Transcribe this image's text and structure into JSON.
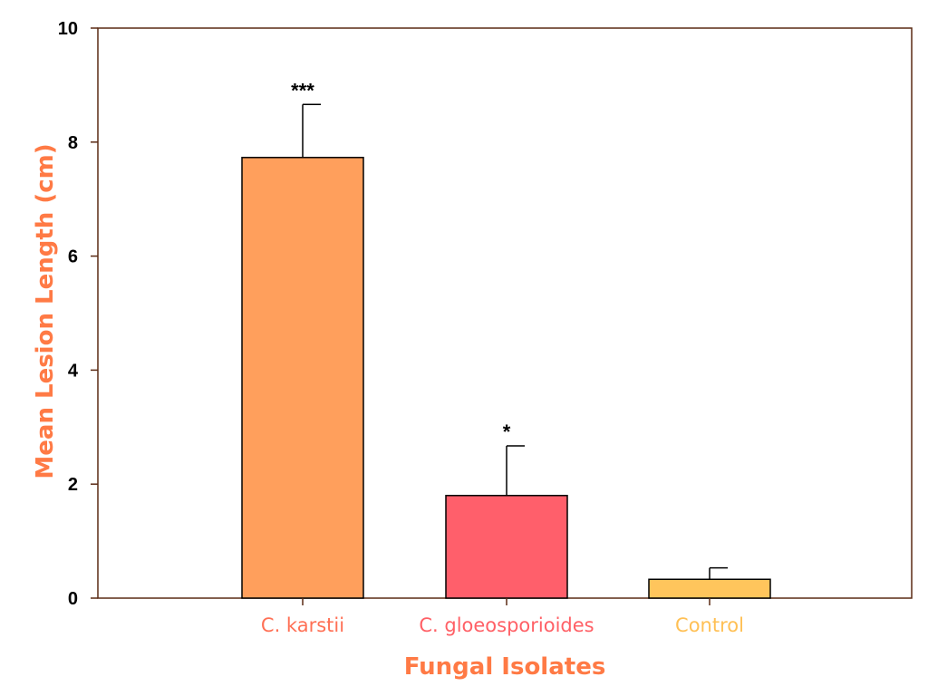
{
  "chart_data": {
    "type": "bar",
    "categories": [
      "C. karstii",
      "C. gloeosporioides",
      "Control"
    ],
    "values": [
      7.73,
      1.8,
      0.33
    ],
    "errors": [
      0.93,
      0.87,
      0.2
    ],
    "significance": [
      "***",
      "*",
      ""
    ],
    "bar_colors": [
      "#FF9F5C",
      "#FF5F6B",
      "#FFC55C"
    ],
    "label_colors": [
      "#FF7055",
      "#FF6066",
      "#FFC055"
    ],
    "title": "",
    "xlabel": "Fungal Isolates",
    "ylabel": "Mean Lesion Length (cm)",
    "axis_title_color": "#FF7A45",
    "axis_color": "#5A2A14",
    "ylim": [
      0,
      10
    ],
    "yticks": [
      0,
      2,
      4,
      6,
      8,
      10
    ],
    "grid": false,
    "legend": "none"
  }
}
